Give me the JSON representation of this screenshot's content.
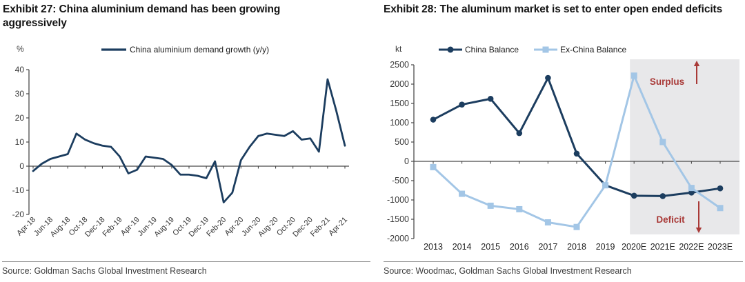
{
  "panels": [
    {
      "title": "Exhibit 27: China aluminium demand has been growing aggressively",
      "unit": "%",
      "legend": [
        {
          "label": "China aluminium demand growth (y/y)",
          "color": "#1c3d5f",
          "marker": "line"
        }
      ],
      "source": "Source: Goldman Sachs Global Investment Research"
    },
    {
      "title": "Exhibit 28: The aluminum market is set to enter open ended deficits",
      "unit": "kt",
      "legend": [
        {
          "label": "China Balance",
          "color": "#1c3d5f",
          "marker": "circle"
        },
        {
          "label": "Ex-China Balance",
          "color": "#a3c6e6",
          "marker": "square"
        }
      ],
      "source": "Source: Woodmac, Goldman Sachs Global Investment Research"
    }
  ],
  "chart_data": [
    {
      "type": "line",
      "title": "China aluminium demand growth (y/y)",
      "ylabel": "%",
      "ylim": [
        -20,
        40
      ],
      "ytick": 10,
      "x_label_every": 2,
      "categories": [
        "Apr-18",
        "May-18",
        "Jun-18",
        "Jul-18",
        "Aug-18",
        "Sep-18",
        "Oct-18",
        "Nov-18",
        "Dec-18",
        "Jan-19",
        "Feb-19",
        "Mar-19",
        "Apr-19",
        "May-19",
        "Jun-19",
        "Jul-19",
        "Aug-19",
        "Sep-19",
        "Oct-19",
        "Nov-19",
        "Dec-19",
        "Jan-20",
        "Feb-20",
        "Mar-20",
        "Apr-20",
        "May-20",
        "Jun-20",
        "Jul-20",
        "Aug-20",
        "Sep-20",
        "Oct-20",
        "Nov-20",
        "Dec-20",
        "Jan-21",
        "Feb-21",
        "Mar-21",
        "Apr-21"
      ],
      "series": [
        {
          "name": "China aluminium demand growth (y/y)",
          "color": "#1c3d5f",
          "width": 2.8,
          "marker": "none",
          "values": [
            -2,
            1,
            3,
            4,
            5,
            13.5,
            11,
            9.5,
            8.5,
            8,
            4,
            -3,
            -1.5,
            4,
            3.5,
            3,
            0.5,
            -3.5,
            -3.5,
            -4,
            -5,
            2,
            -15,
            -11,
            2.5,
            8,
            12.5,
            13.5,
            13,
            12.5,
            14.5,
            11,
            11.5,
            6,
            36,
            23,
            8.5
          ]
        }
      ]
    },
    {
      "type": "line",
      "title": "Aluminum market balance (kt)",
      "ylabel": "kt",
      "ylim": [
        -2000,
        2500
      ],
      "ytick": 500,
      "x_label_every": 1,
      "categories": [
        "2013",
        "2014",
        "2015",
        "2016",
        "2017",
        "2018",
        "2019",
        "2020E",
        "2021E",
        "2022E",
        "2023E"
      ],
      "series": [
        {
          "name": "China Balance",
          "color": "#1c3d5f",
          "width": 3,
          "marker": "circle",
          "values": [
            1080,
            1470,
            1620,
            730,
            2160,
            200,
            -620,
            -890,
            -900,
            -810,
            -700
          ]
        },
        {
          "name": "Ex-China Balance",
          "color": "#a3c6e6",
          "width": 3,
          "marker": "square",
          "values": [
            -150,
            -840,
            -1150,
            -1240,
            -1580,
            -1700,
            -620,
            2220,
            500,
            -690,
            -1210
          ]
        }
      ],
      "shaded_region": {
        "start_category": "2020E",
        "color": "#e8e8ea"
      },
      "annotations": [
        {
          "text": "Surplus",
          "color": "#a93a38",
          "x": 427,
          "y": 68,
          "arrow": {
            "x": 470,
            "from_y": 67,
            "to_y": 33
          }
        },
        {
          "text": "Deficit",
          "color": "#a93a38",
          "x": 432,
          "y": 268,
          "arrow": {
            "x": 473,
            "from_y": 237,
            "to_y": 283
          }
        }
      ]
    }
  ]
}
